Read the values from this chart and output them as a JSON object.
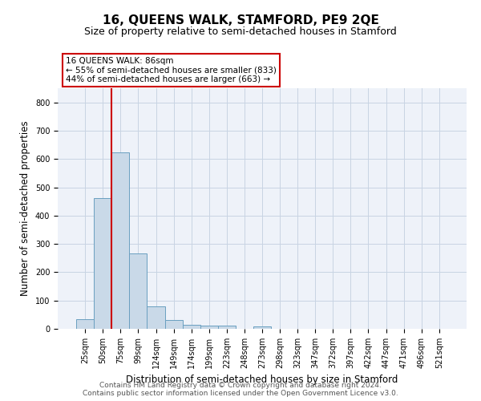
{
  "title": "16, QUEENS WALK, STAMFORD, PE9 2QE",
  "subtitle": "Size of property relative to semi-detached houses in Stamford",
  "xlabel": "Distribution of semi-detached houses by size in Stamford",
  "ylabel": "Number of semi-detached properties",
  "categories": [
    "25sqm",
    "50sqm",
    "75sqm",
    "99sqm",
    "124sqm",
    "149sqm",
    "174sqm",
    "199sqm",
    "223sqm",
    "248sqm",
    "273sqm",
    "298sqm",
    "323sqm",
    "347sqm",
    "372sqm",
    "397sqm",
    "422sqm",
    "447sqm",
    "471sqm",
    "496sqm",
    "521sqm"
  ],
  "values": [
    33,
    463,
    622,
    265,
    80,
    30,
    15,
    12,
    10,
    0,
    8,
    0,
    0,
    0,
    0,
    0,
    0,
    0,
    0,
    0,
    0
  ],
  "bar_color": "#c9d9e8",
  "bar_edge_color": "#6a9fc0",
  "subject_line_color": "#cc0000",
  "annotation_line1": "16 QUEENS WALK: 86sqm",
  "annotation_line2": "← 55% of semi-detached houses are smaller (833)",
  "annotation_line3": "44% of semi-detached houses are larger (663) →",
  "annotation_box_color": "#cc0000",
  "ylim": [
    0,
    850
  ],
  "yticks": [
    0,
    100,
    200,
    300,
    400,
    500,
    600,
    700,
    800
  ],
  "grid_color": "#c8d4e3",
  "background_color": "#eef2f9",
  "footer_line1": "Contains HM Land Registry data © Crown copyright and database right 2024.",
  "footer_line2": "Contains public sector information licensed under the Open Government Licence v3.0.",
  "title_fontsize": 11,
  "subtitle_fontsize": 9,
  "axis_label_fontsize": 8.5,
  "tick_fontsize": 7,
  "annotation_fontsize": 7.5,
  "footer_fontsize": 6.5
}
